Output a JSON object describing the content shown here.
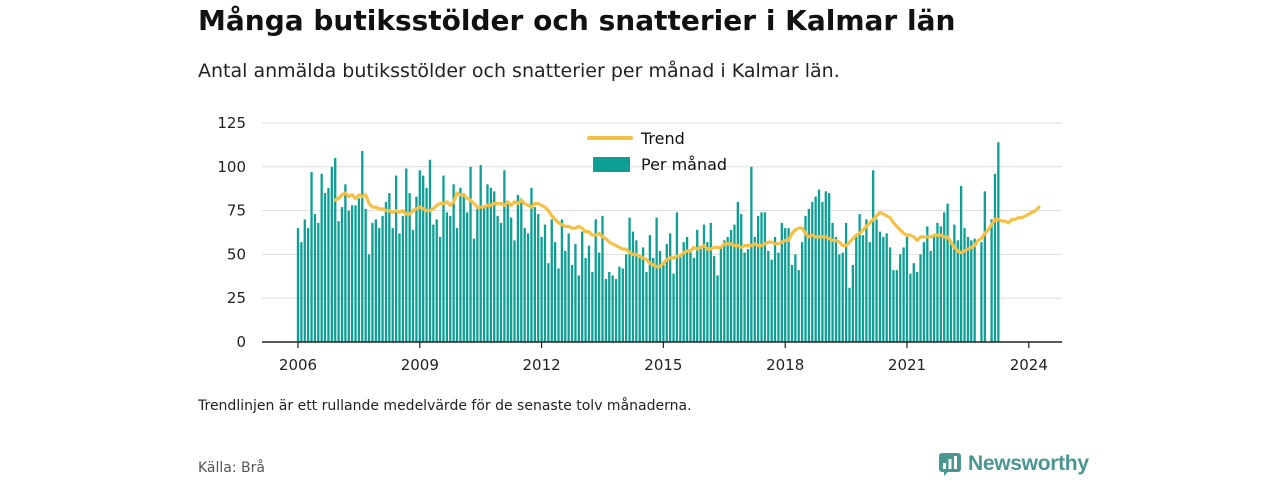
{
  "title": "Många butiksstölder och snatterier i Kalmar län",
  "subtitle": "Antal anmälda butiksstölder och snatterier per månad i Kalmar län.",
  "note": "Trendlinjen är ett rullande medelvärde för de senaste tolv månaderna.",
  "source": "Källa: Brå",
  "brand": {
    "name": "Newsworthy",
    "icon": "newsworthy-logo-icon"
  },
  "colors": {
    "bar": "#0d9e94",
    "trend": "#f5c046",
    "grid": "#dddddd",
    "axis": "#222222"
  },
  "legend": {
    "trend": "Trend",
    "bars": "Per månad"
  },
  "chart_data": {
    "type": "bar",
    "title": "Många butiksstölder och snatterier i Kalmar län",
    "xlabel": "",
    "ylabel": "",
    "x_ticks": [
      "2006",
      "2009",
      "2012",
      "2015",
      "2018",
      "2021",
      "2024"
    ],
    "y_ticks": [
      0,
      25,
      50,
      75,
      100,
      125
    ],
    "ylim": [
      0,
      125
    ],
    "grid": true,
    "legend_position": "top-center",
    "start_month": "2006-01",
    "series": [
      {
        "name": "Per månad",
        "type": "bar",
        "values": [
          65,
          57,
          70,
          65,
          97,
          73,
          68,
          96,
          85,
          88,
          100,
          105,
          69,
          77,
          90,
          75,
          78,
          78,
          82,
          109,
          76,
          50,
          68,
          70,
          65,
          72,
          80,
          85,
          65,
          95,
          62,
          72,
          99,
          85,
          64,
          83,
          98,
          95,
          88,
          104,
          67,
          70,
          60,
          95,
          74,
          72,
          90,
          65,
          88,
          85,
          74,
          100,
          59,
          76,
          101,
          78,
          90,
          88,
          86,
          72,
          68,
          98,
          80,
          71,
          58,
          84,
          82,
          65,
          62,
          88,
          77,
          73,
          60,
          67,
          45,
          70,
          57,
          42,
          70,
          52,
          62,
          44,
          56,
          38,
          63,
          48,
          55,
          40,
          70,
          51,
          72,
          36,
          40,
          38,
          36,
          43,
          42,
          50,
          71,
          63,
          58,
          48,
          54,
          40,
          61,
          48,
          71,
          52,
          44,
          56,
          62,
          39,
          74,
          50,
          57,
          60,
          52,
          48,
          64,
          53,
          67,
          57,
          68,
          49,
          38,
          54,
          58,
          60,
          64,
          67,
          80,
          73,
          51,
          53,
          100,
          60,
          72,
          74,
          74,
          52,
          47,
          60,
          51,
          68,
          65,
          65,
          44,
          50,
          41,
          57,
          72,
          76,
          80,
          83,
          87,
          80,
          86,
          85,
          68,
          60,
          50,
          51,
          68,
          31,
          44,
          60,
          73,
          61,
          70,
          57,
          98,
          70,
          63,
          60,
          62,
          54,
          41,
          41,
          50,
          54,
          60,
          39,
          45,
          40,
          50,
          57,
          66,
          52,
          61,
          68,
          66,
          74,
          79,
          56,
          67,
          58,
          89,
          65,
          60,
          58,
          59,
          0,
          57,
          86,
          0,
          70,
          96,
          114
        ]
      },
      {
        "name": "Trend",
        "type": "line",
        "start_month": "2006-12",
        "values": [
          81,
          82,
          84,
          85,
          83,
          84,
          82,
          84,
          83,
          84,
          79,
          77,
          77,
          76,
          76,
          75,
          75,
          74,
          75,
          74,
          75,
          73,
          73,
          75,
          76,
          77,
          76,
          75,
          75,
          76,
          78,
          79,
          79,
          80,
          78,
          80,
          85,
          84,
          84,
          82,
          81,
          79,
          77,
          77,
          77,
          78,
          78,
          79,
          79,
          79,
          78,
          80,
          78,
          80,
          79,
          81,
          79,
          78,
          77,
          79,
          79,
          78,
          77,
          75,
          72,
          70,
          68,
          67,
          66,
          66,
          65,
          65,
          66,
          65,
          63,
          63,
          61,
          61,
          62,
          60,
          59,
          57,
          56,
          55,
          54,
          53,
          53,
          51,
          50,
          50,
          49,
          48,
          47,
          45,
          44,
          43,
          43,
          45,
          47,
          48,
          48,
          49,
          49,
          51,
          52,
          52,
          54,
          53,
          54,
          55,
          53,
          53,
          54,
          54,
          54,
          56,
          56,
          56,
          55,
          55,
          54,
          55,
          55,
          55,
          56,
          55,
          55,
          56,
          57,
          57,
          56,
          56,
          57,
          58,
          58,
          62,
          64,
          65,
          65,
          62,
          60,
          61,
          60,
          60,
          60,
          60,
          59,
          58,
          58,
          57,
          55,
          55,
          57,
          59,
          61,
          62,
          64,
          66,
          68,
          70,
          72,
          74,
          73,
          72,
          71,
          68,
          66,
          64,
          62,
          61,
          61,
          60,
          58,
          60,
          60,
          60,
          60,
          61,
          61,
          61,
          60,
          60,
          57,
          54,
          52,
          51,
          52,
          53,
          54,
          55,
          58,
          59,
          62,
          64,
          67,
          70,
          70,
          69,
          69,
          68,
          70,
          70,
          71,
          71,
          72,
          73,
          74,
          75,
          77
        ]
      }
    ]
  }
}
